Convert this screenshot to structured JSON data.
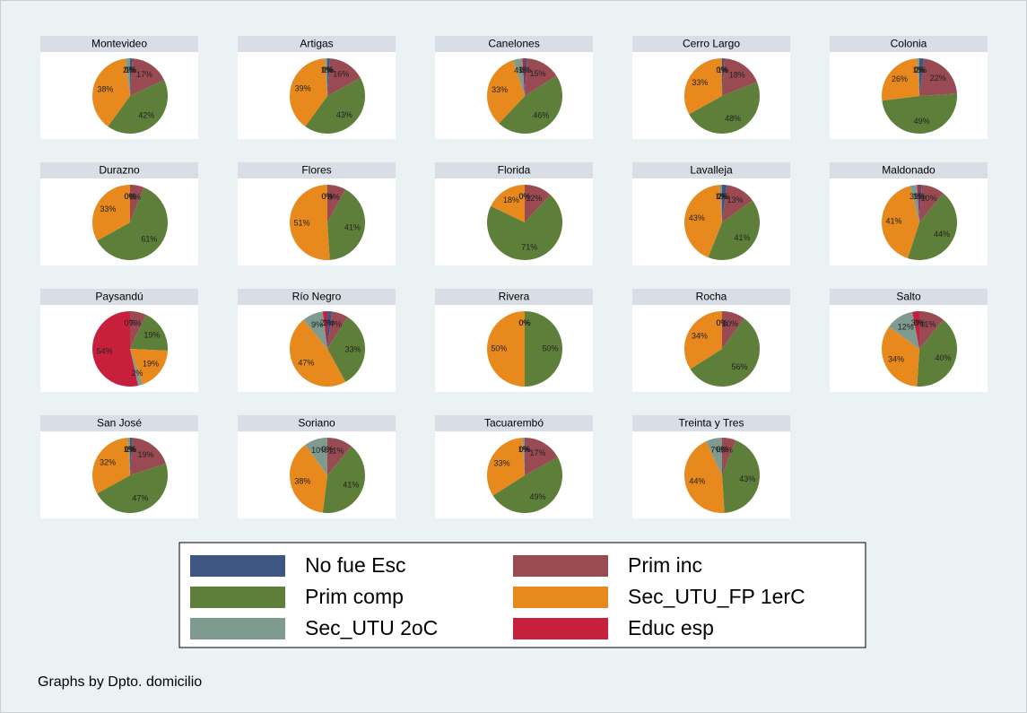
{
  "legend": {
    "categories": [
      "No fue Esc",
      "Prim inc",
      "Prim comp",
      "Sec_UTU_FP 1erC",
      "Sec_UTU 2oC",
      "Educ esp"
    ],
    "colors": [
      "#3e5682",
      "#9a4a52",
      "#5e7f3a",
      "#e8891e",
      "#7f9a8f",
      "#c8203c"
    ]
  },
  "note": "Graphs by Dpto. domicilio",
  "chart_data": [
    {
      "type": "pie",
      "title": "Montevideo",
      "values": [
        1,
        17,
        42,
        38,
        2,
        0
      ],
      "value_labels": [
        "1%",
        "17%",
        "42%",
        "38%",
        "2%",
        "0%"
      ]
    },
    {
      "type": "pie",
      "title": "Artigas",
      "values": [
        1,
        16,
        43,
        39,
        1,
        0
      ],
      "value_labels": [
        "1%",
        "16%",
        "43%",
        "39%",
        "1%",
        "0%"
      ]
    },
    {
      "type": "pie",
      "title": "Canelones",
      "values": [
        1,
        15,
        46,
        33,
        4,
        1
      ],
      "value_labels": [
        "1%",
        "15%",
        "46%",
        "33%",
        "4%",
        "1%"
      ]
    },
    {
      "type": "pie",
      "title": "Cerro Largo",
      "values": [
        1,
        18,
        48,
        33,
        0,
        0
      ],
      "value_labels": [
        "1%",
        "18%",
        "48%",
        "33%",
        "0%",
        "0%"
      ]
    },
    {
      "type": "pie",
      "title": "Colonia",
      "values": [
        2,
        22,
        49,
        26,
        1,
        0
      ],
      "value_labels": [
        "2%",
        "22%",
        "49%",
        "26%",
        "1%",
        "0%"
      ]
    },
    {
      "type": "pie",
      "title": "Durazno",
      "values": [
        0,
        6,
        61,
        33,
        0,
        0
      ],
      "value_labels": [
        "0%",
        "6%",
        "61%",
        "33%",
        "0%",
        "0%"
      ]
    },
    {
      "type": "pie",
      "title": "Flores",
      "values": [
        0,
        8,
        41,
        51,
        0,
        0
      ],
      "value_labels": [
        "0%",
        "8%",
        "41%",
        "51%",
        "0%",
        "0%"
      ]
    },
    {
      "type": "pie",
      "title": "Florida",
      "values": [
        0,
        12,
        71,
        18,
        0,
        0
      ],
      "value_labels": [
        "0%",
        "12%",
        "71%",
        "18%",
        "0%",
        "0%"
      ]
    },
    {
      "type": "pie",
      "title": "Lavalleja",
      "values": [
        2,
        13,
        41,
        43,
        1,
        0
      ],
      "value_labels": [
        "2%",
        "13%",
        "41%",
        "43%",
        "1%",
        "0%"
      ]
    },
    {
      "type": "pie",
      "title": "Maldonado",
      "values": [
        1,
        10,
        44,
        41,
        3,
        1
      ],
      "value_labels": [
        "1%",
        "10%",
        "44%",
        "41%",
        "3%",
        "1%"
      ]
    },
    {
      "type": "pie",
      "title": "Paysandú",
      "values": [
        0,
        7,
        19,
        19,
        2,
        54
      ],
      "value_labels": [
        "0%",
        "7%",
        "19%",
        "19%",
        "2%",
        "54%"
      ]
    },
    {
      "type": "pie",
      "title": "Río Negro",
      "values": [
        2,
        7,
        33,
        47,
        9,
        2
      ],
      "value_labels": [
        "2%",
        "7%",
        "33%",
        "47%",
        "9%",
        "2%"
      ]
    },
    {
      "type": "pie",
      "title": "Rivera",
      "values": [
        0,
        0,
        50,
        50,
        0,
        0
      ],
      "value_labels": [
        "0%",
        "0%",
        "50%",
        "50%",
        "0%",
        "0%"
      ]
    },
    {
      "type": "pie",
      "title": "Rocha",
      "values": [
        0,
        10,
        56,
        34,
        0,
        0
      ],
      "value_labels": [
        "0%",
        "10%",
        "56%",
        "34%",
        "0%",
        "0%"
      ]
    },
    {
      "type": "pie",
      "title": "Salto",
      "values": [
        0,
        11,
        40,
        34,
        12,
        3
      ],
      "value_labels": [
        "0%",
        "11%",
        "40%",
        "34%",
        "12%",
        "3%"
      ]
    },
    {
      "type": "pie",
      "title": "San José",
      "values": [
        1,
        19,
        47,
        32,
        1,
        0
      ],
      "value_labels": [
        "1%",
        "19%",
        "47%",
        "32%",
        "1%",
        "0%"
      ]
    },
    {
      "type": "pie",
      "title": "Soriano",
      "values": [
        0,
        11,
        41,
        38,
        10,
        0
      ],
      "value_labels": [
        "0%",
        "11%",
        "41%",
        "38%",
        "10%",
        "0%"
      ]
    },
    {
      "type": "pie",
      "title": "Tacuarembó",
      "values": [
        0,
        17,
        49,
        33,
        1,
        0
      ],
      "value_labels": [
        "0%",
        "17%",
        "49%",
        "33%",
        "1%",
        "0%"
      ]
    },
    {
      "type": "pie",
      "title": "Treinta y Tres",
      "values": [
        0,
        6,
        43,
        44,
        7,
        0
      ],
      "value_labels": [
        "0%",
        "6%",
        "43%",
        "44%",
        "7%",
        "0%"
      ]
    }
  ]
}
